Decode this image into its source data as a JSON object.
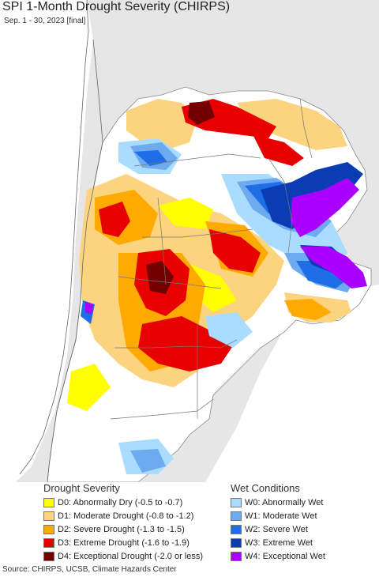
{
  "header": {
    "title": "SPI 1-Month Drought Severity (CHIRPS)",
    "subtitle": "Sep. 1 - 30, 2023 [final]"
  },
  "legend": {
    "drought_title": "Drought Severity",
    "wet_title": "Wet Conditions",
    "drought_items": [
      {
        "label": "D0: Abnormally Dry (-0.5 to -0.7)",
        "color": "#ffff00"
      },
      {
        "label": "D1: Moderate Drought (-0.8 to -1.2)",
        "color": "#fcd37f"
      },
      {
        "label": "D2: Severe Drought (-1.3 to -1.5)",
        "color": "#ffaa00"
      },
      {
        "label": "D3: Extreme Drought (-1.6 to -1.9)",
        "color": "#e60000"
      },
      {
        "label": "D4: Exceptional Drought (-2.0 or less)",
        "color": "#730000"
      }
    ],
    "wet_items": [
      {
        "label": "W0: Abnormally Wet",
        "color": "#aadcff"
      },
      {
        "label": "W1: Moderate Wet",
        "color": "#6eaaf0"
      },
      {
        "label": "W2: Severe Wet",
        "color": "#1e6ee6"
      },
      {
        "label": "W3: Extreme Wet",
        "color": "#0a3cb4"
      },
      {
        "label": "W4: Exceptional Wet",
        "color": "#aa00ff"
      }
    ]
  },
  "footer": {
    "source": "Source: CHIRPS, UCSB, Climate Hazards Center"
  }
}
